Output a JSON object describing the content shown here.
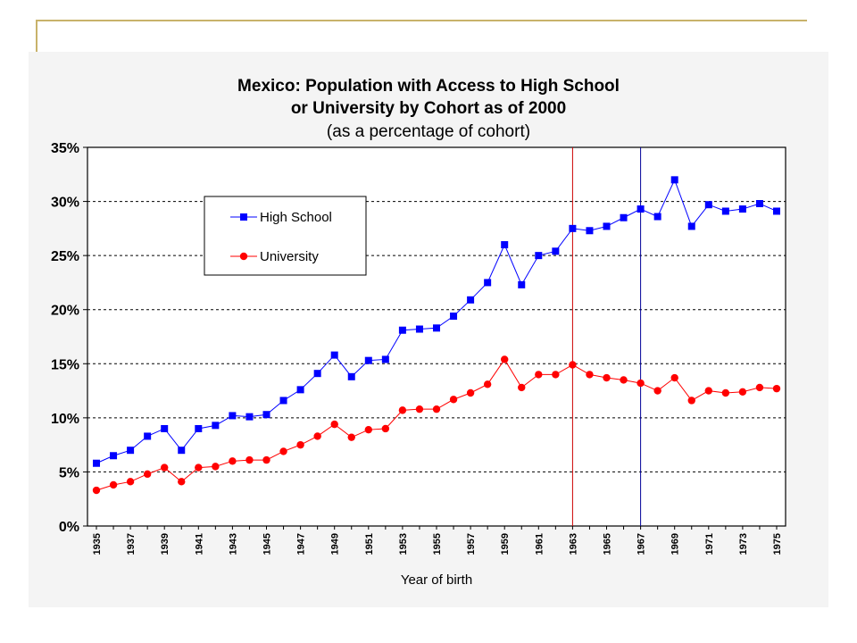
{
  "chart_data": {
    "type": "line",
    "title_line1": "Mexico: Population with Access to High School",
    "title_line2": "or University by Cohort as of 2000",
    "subtitle": "(as a percentage of cohort)",
    "xlabel": "Year of birth",
    "ylabel": "",
    "ylim": [
      0,
      35
    ],
    "yticks": [
      "0%",
      "5%",
      "10%",
      "15%",
      "20%",
      "25%",
      "30%",
      "35%"
    ],
    "grid": "horizontal dashed",
    "legend_position": "upper-left inside",
    "x": [
      1935,
      1936,
      1937,
      1938,
      1939,
      1940,
      1941,
      1942,
      1943,
      1944,
      1945,
      1946,
      1947,
      1948,
      1949,
      1950,
      1951,
      1952,
      1953,
      1954,
      1955,
      1956,
      1957,
      1958,
      1959,
      1960,
      1961,
      1962,
      1963,
      1964,
      1965,
      1966,
      1967,
      1968,
      1969,
      1970,
      1971,
      1972,
      1973,
      1974,
      1975
    ],
    "xtick_labels": [
      "1935",
      "1937",
      "1939",
      "1941",
      "1943",
      "1945",
      "1947",
      "1949",
      "1951",
      "1953",
      "1955",
      "1957",
      "1959",
      "1961",
      "1963",
      "1965",
      "1967",
      "1969",
      "1971",
      "1973",
      "1975"
    ],
    "series": [
      {
        "name": "High School",
        "color": "#0000ff",
        "marker": "square",
        "values": [
          5.8,
          6.5,
          7.0,
          8.3,
          9.0,
          7.0,
          9.0,
          9.3,
          10.2,
          10.1,
          10.3,
          11.6,
          12.6,
          14.1,
          15.8,
          13.8,
          15.3,
          15.4,
          18.1,
          18.2,
          18.3,
          19.4,
          20.9,
          22.5,
          26.0,
          22.3,
          25.0,
          25.4,
          27.5,
          27.3,
          27.7,
          28.5,
          29.3,
          28.6,
          32.0,
          27.7,
          29.7,
          29.1,
          29.3,
          29.8,
          29.1
        ]
      },
      {
        "name": "University",
        "color": "#ff0000",
        "marker": "circle",
        "values": [
          3.3,
          3.8,
          4.1,
          4.8,
          5.4,
          4.1,
          5.4,
          5.5,
          6.0,
          6.1,
          6.1,
          6.9,
          7.5,
          8.3,
          9.4,
          8.2,
          8.9,
          9.0,
          10.7,
          10.8,
          10.8,
          11.7,
          12.3,
          13.1,
          15.4,
          12.8,
          14.0,
          14.0,
          14.9,
          14.0,
          13.7,
          13.5,
          13.2,
          12.5,
          13.7,
          11.6,
          12.5,
          12.3,
          12.4,
          12.8,
          12.7
        ]
      }
    ],
    "reference_lines": [
      {
        "x": 1963,
        "color": "#cc0000"
      },
      {
        "x": 1967,
        "color": "#000099"
      }
    ]
  }
}
